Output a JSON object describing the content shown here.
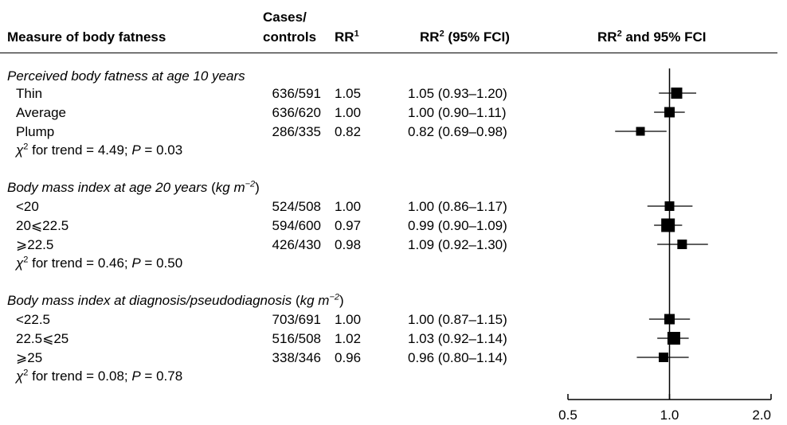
{
  "header": {
    "measure": "Measure of body fatness",
    "cases_line1": "Cases/",
    "cases_line2": "controls",
    "rr1": "RR",
    "rr1_sup": "1",
    "rr2": "RR",
    "rr2_sup": "2",
    "rr2_suffix": " (95% FCI)",
    "plot": "RR",
    "plot_sup": "2",
    "plot_suffix": " and 95% FCI"
  },
  "sections": [
    {
      "title_pre": "Perceived body fatness at age 10 years",
      "title_unit": "",
      "title_exp": "",
      "title_post": "",
      "trend_prefix": " for trend = 4.49; ",
      "trend_p": "P",
      "trend_value": " = 0.03",
      "rows": [
        {
          "label": "Thin",
          "cases": "636/591",
          "rr1": "1.05",
          "rr2": "1.05 (0.93–1.20)"
        },
        {
          "label": "Average",
          "cases": "636/620",
          "rr1": "1.00",
          "rr2": "1.00 (0.90–1.11)"
        },
        {
          "label": "Plump",
          "cases": "286/335",
          "rr1": "0.82",
          "rr2": "0.82 (0.69–0.98)"
        }
      ]
    },
    {
      "title_pre": "Body mass index at age 20 years",
      "title_unit": "kg m",
      "title_exp": "−2",
      "title_post": ")",
      "trend_prefix": " for trend = 0.46; ",
      "trend_p": "P",
      "trend_value": " = 0.50",
      "rows": [
        {
          "label": "<20",
          "cases": "524/508",
          "rr1": "1.00",
          "rr2": "1.00 (0.86–1.17)"
        },
        {
          "label": "20⩽22.5",
          "cases": "594/600",
          "rr1": "0.97",
          "rr2": "0.99 (0.90–1.09)"
        },
        {
          "label": "⩾22.5",
          "cases": "426/430",
          "rr1": "0.98",
          "rr2": "1.09 (0.92–1.30)"
        }
      ]
    },
    {
      "title_pre": "Body mass index at diagnosis/pseudodiagnosis",
      "title_unit": "kg m",
      "title_exp": "−2",
      "title_post": ")",
      "trend_prefix": " for trend = 0.08; ",
      "trend_p": "P",
      "trend_value": " = 0.78",
      "rows": [
        {
          "label": "<22.5",
          "cases": "703/691",
          "rr1": "1.00",
          "rr2": "1.00 (0.87–1.15)"
        },
        {
          "label": "22.5⩽25",
          "cases": "516/508",
          "rr1": "1.02",
          "rr2": "1.03 (0.92–1.14)"
        },
        {
          "label": "⩾25",
          "cases": "338/346",
          "rr1": "0.96",
          "rr2": "0.96 (0.80–1.14)"
        }
      ]
    }
  ],
  "chi_symbol": "χ",
  "chi_sup": "2",
  "chart_data": {
    "type": "forest",
    "title": "RR² and 95% FCI",
    "x_scale": "log",
    "xlim": [
      0.5,
      2.0
    ],
    "xticks": [
      0.5,
      1.0,
      2.0
    ],
    "xtick_labels": [
      "0.5",
      "1.0",
      "2.0"
    ],
    "reference_line": 1.0,
    "points": [
      {
        "label": "Thin",
        "est": 1.05,
        "lo": 0.93,
        "hi": 1.2
      },
      {
        "label": "Average",
        "est": 1.0,
        "lo": 0.9,
        "hi": 1.11
      },
      {
        "label": "Plump",
        "est": 0.82,
        "lo": 0.69,
        "hi": 0.98
      },
      {
        "label": "<20",
        "est": 1.0,
        "lo": 0.86,
        "hi": 1.17
      },
      {
        "label": "20⩽22.5",
        "est": 0.99,
        "lo": 0.9,
        "hi": 1.09
      },
      {
        "label": "⩾22.5",
        "est": 1.09,
        "lo": 0.92,
        "hi": 1.3
      },
      {
        "label": "<22.5",
        "est": 1.0,
        "lo": 0.87,
        "hi": 1.15
      },
      {
        "label": "22.5⩽25",
        "est": 1.03,
        "lo": 0.92,
        "hi": 1.14
      },
      {
        "label": "⩾25",
        "est": 0.96,
        "lo": 0.8,
        "hi": 1.14
      }
    ]
  }
}
